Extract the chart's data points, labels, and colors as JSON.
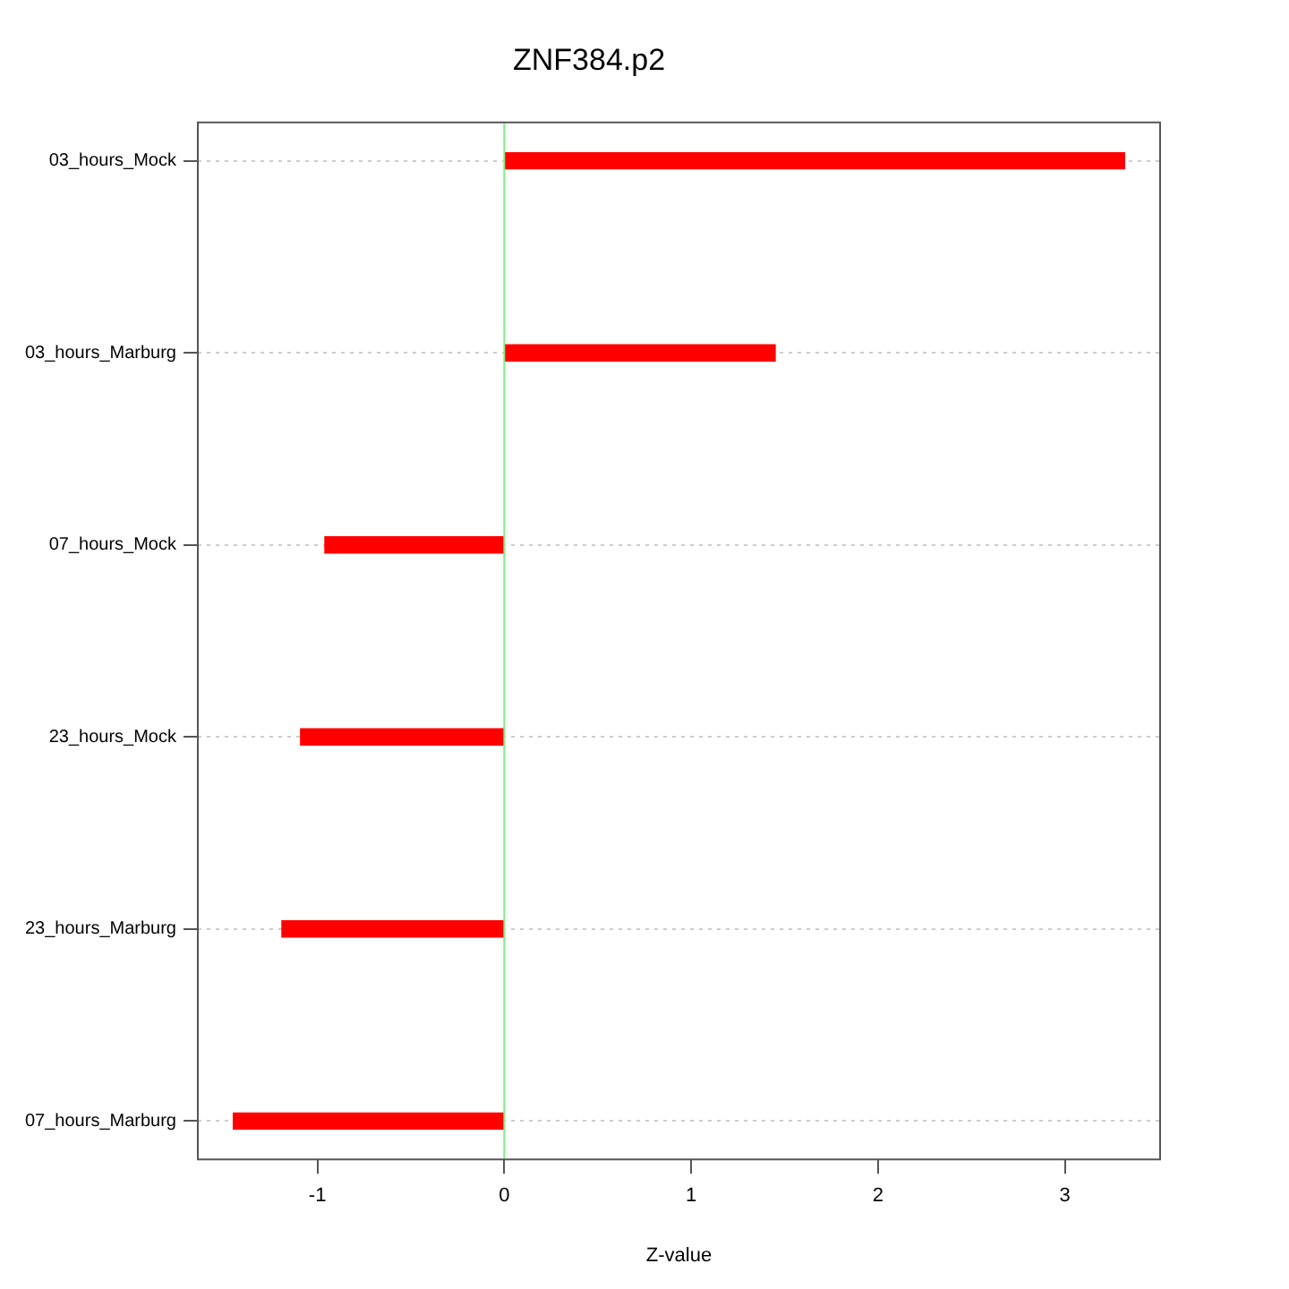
{
  "chart_data": {
    "type": "bar",
    "orientation": "horizontal",
    "title": "ZNF384.p2",
    "xlabel": "Z-value",
    "categories": [
      "03_hours_Mock",
      "03_hours_Marburg",
      "07_hours_Mock",
      "23_hours_Mock",
      "23_hours_Marburg",
      "07_hours_Marburg"
    ],
    "values": [
      3.32,
      1.45,
      -0.96,
      -1.09,
      -1.19,
      -1.45
    ],
    "color": "#ff0000",
    "xlim": [
      -1.64,
      3.51
    ],
    "xticks": [
      -1,
      0,
      1,
      2,
      3
    ],
    "grid": "y",
    "legend": false,
    "ref_lines": [
      {
        "axis": "x",
        "value": 0,
        "color": "#7fef7f"
      }
    ]
  }
}
